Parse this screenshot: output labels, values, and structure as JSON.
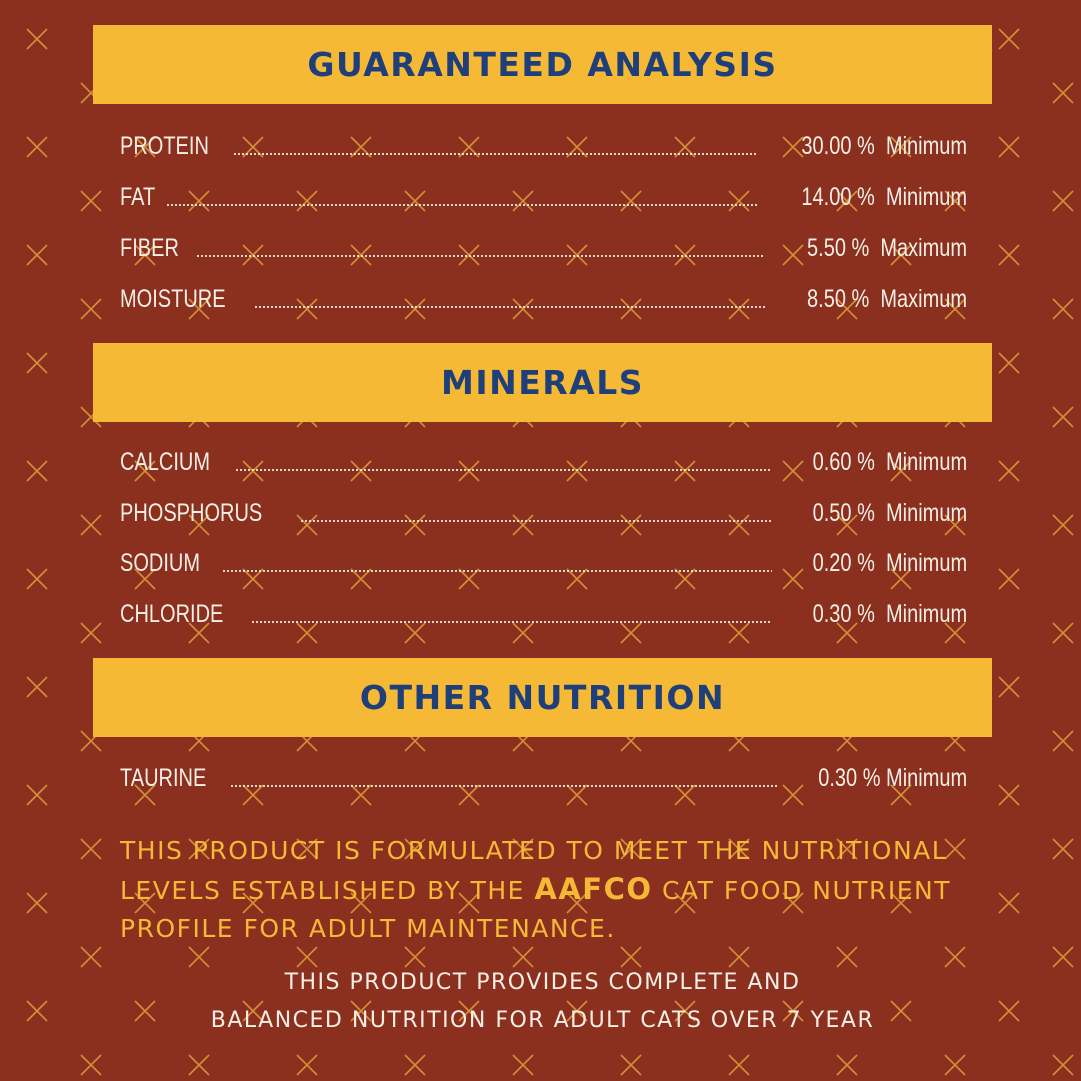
{
  "colors": {
    "background": "#8b2f1f",
    "banner": "#f5b936",
    "banner_text": "#1f3f7a",
    "row_text": "#f6efe6",
    "statement_text": "#f5b936",
    "pattern": "#e8a93a"
  },
  "background_pattern": "x-cross-icon",
  "sections": [
    {
      "title": "GUARANTEED ANALYSIS",
      "rows": [
        {
          "label": "PROTEIN",
          "value": "30.00 %  Minimum"
        },
        {
          "label": "FAT",
          "value": "14.00 %  Minimum"
        },
        {
          "label": "FIBER",
          "value": "5.50 %  Maximum"
        },
        {
          "label": "MOISTURE",
          "value": "8.50 %  Maximum"
        }
      ]
    },
    {
      "title": "MINERALS",
      "rows": [
        {
          "label": "CALCIUM",
          "value": "0.60 %  Minimum"
        },
        {
          "label": "PHOSPHORUS",
          "value": "0.50 %  Minimum"
        },
        {
          "label": "SODIUM",
          "value": "0.20 %  Minimum"
        },
        {
          "label": "CHLORIDE",
          "value": "0.30 %  Minimum"
        }
      ]
    },
    {
      "title": "OTHER NUTRITION",
      "rows": [
        {
          "label": "TAURINE",
          "value": "0.30 % Minimum"
        }
      ]
    }
  ],
  "statement": {
    "line1": "THIS PRODUCT IS FORMULATED TO MEET THE NUTRITIONAL",
    "line2_pre": "LEVELS ESTABLISHED BY THE ",
    "line2_brand": "AAFCO",
    "line2_post": " CAT FOOD NUTRIENT",
    "line3": "PROFILE FOR ADULT MAINTENANCE."
  },
  "footer": {
    "line1": "THIS PRODUCT PROVIDES COMPLETE AND",
    "line2": "BALANCED NUTRITION FOR ADULT CATS OVER 7 YEAR"
  }
}
